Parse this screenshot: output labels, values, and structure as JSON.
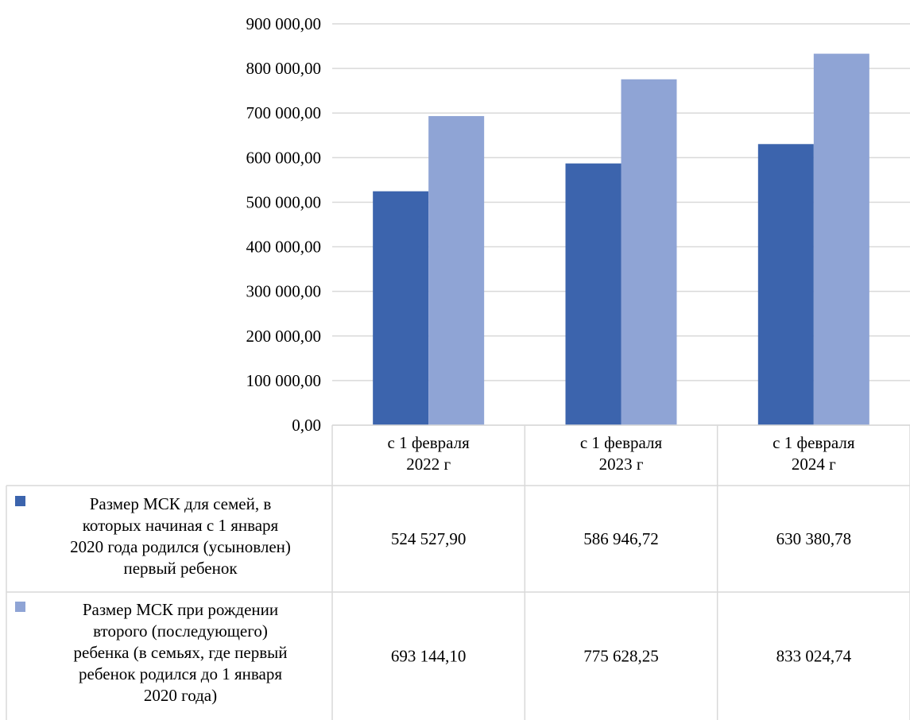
{
  "chart_data": {
    "type": "bar",
    "title": "",
    "xlabel": "",
    "ylabel": "",
    "ylim": [
      0,
      900000
    ],
    "yticks": [
      "0,00",
      "100 000,00",
      "200 000,00",
      "300 000,00",
      "400 000,00",
      "500 000,00",
      "600 000,00",
      "700 000,00",
      "800 000,00",
      "900 000,00"
    ],
    "grid": true,
    "legend": "data-table",
    "categories": [
      [
        "с 1 февраля",
        "2022 г"
      ],
      [
        "с 1 февраля",
        "2023 г"
      ],
      [
        "с 1 февраля",
        "2024 г"
      ]
    ],
    "series": [
      {
        "name": [
          "Размер МСК для семей, в",
          "которых начиная с 1 января",
          "2020 года родился (усыновлен)",
          "первый ребенок"
        ],
        "color": "#3c64ad",
        "values": [
          524527.9,
          586946.72,
          630380.78
        ],
        "labels": [
          "524 527,90",
          "586 946,72",
          "630 380,78"
        ]
      },
      {
        "name": [
          "Размер МСК при рождении",
          "второго (последующего)",
          "ребенка (в семьях, где первый",
          "ребенок родился до 1 января",
          "2020 года)"
        ],
        "color": "#8fa4d5",
        "values": [
          693144.1,
          775628.25,
          833024.74
        ],
        "labels": [
          "693 144,10",
          "775 628,25",
          "833 024,74"
        ]
      }
    ]
  }
}
